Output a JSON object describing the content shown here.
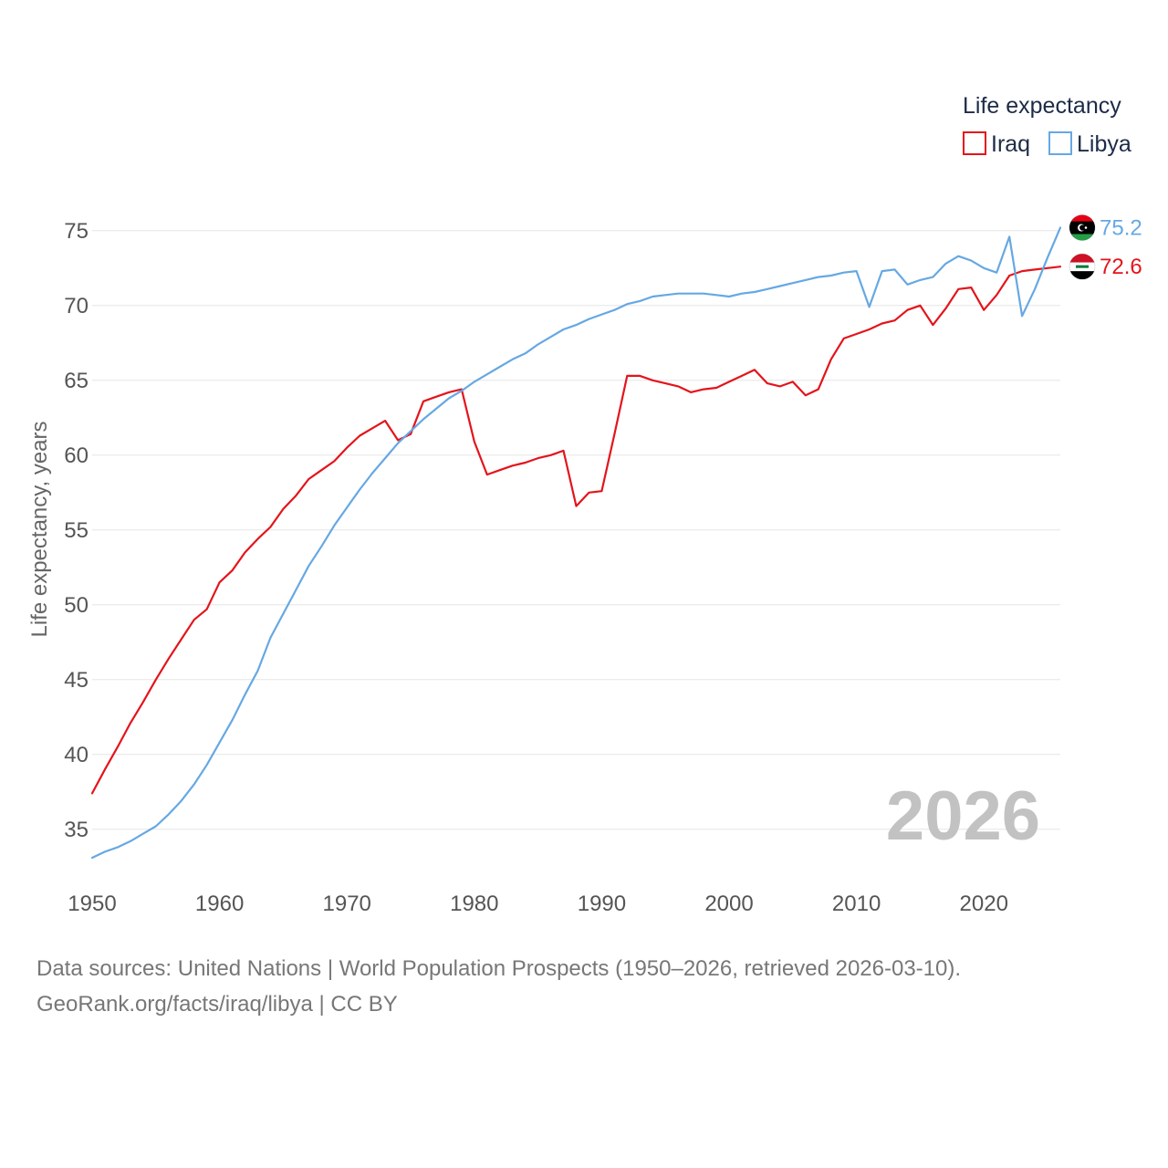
{
  "chart_data": {
    "type": "line",
    "title": "",
    "xlabel": "",
    "ylabel": "Life expectancy, years",
    "xlim": [
      1950,
      2026
    ],
    "ylim": [
      32,
      77
    ],
    "x_ticks": [
      1950,
      1960,
      1970,
      1980,
      1990,
      2000,
      2010,
      2020
    ],
    "y_ticks": [
      35,
      40,
      45,
      50,
      55,
      60,
      65,
      70,
      75
    ],
    "grid": true,
    "legend": {
      "title": "Life expectancy",
      "position": "top-right",
      "entries": [
        {
          "name": "Iraq",
          "color": "#e4141b"
        },
        {
          "name": "Libya",
          "color": "#66a8e3"
        }
      ]
    },
    "year_label": "2026",
    "x": [
      1950,
      1951,
      1952,
      1953,
      1954,
      1955,
      1956,
      1957,
      1958,
      1959,
      1960,
      1961,
      1962,
      1963,
      1964,
      1965,
      1966,
      1967,
      1968,
      1969,
      1970,
      1971,
      1972,
      1973,
      1974,
      1975,
      1976,
      1977,
      1978,
      1979,
      1980,
      1981,
      1982,
      1983,
      1984,
      1985,
      1986,
      1987,
      1988,
      1989,
      1990,
      1991,
      1992,
      1993,
      1994,
      1995,
      1996,
      1997,
      1998,
      1999,
      2000,
      2001,
      2002,
      2003,
      2004,
      2005,
      2006,
      2007,
      2008,
      2009,
      2010,
      2011,
      2012,
      2013,
      2014,
      2015,
      2016,
      2017,
      2018,
      2019,
      2020,
      2021,
      2022,
      2023,
      2024,
      2025,
      2026
    ],
    "series": [
      {
        "name": "Iraq",
        "color": "#e4141b",
        "end_label": "72.6",
        "flag_icon": "iraq-flag-icon",
        "values": [
          37.4,
          39.0,
          40.5,
          42.1,
          43.5,
          45.0,
          46.4,
          47.7,
          49.0,
          49.7,
          51.5,
          52.3,
          53.5,
          54.4,
          55.2,
          56.4,
          57.3,
          58.4,
          59.0,
          59.6,
          60.5,
          61.3,
          61.8,
          62.3,
          61.0,
          61.4,
          63.6,
          63.9,
          64.2,
          64.4,
          60.9,
          58.7,
          59.0,
          59.3,
          59.5,
          59.8,
          60.0,
          60.3,
          56.6,
          57.5,
          57.6,
          61.4,
          65.3,
          65.3,
          65.0,
          64.8,
          64.6,
          64.2,
          64.4,
          64.5,
          64.9,
          65.3,
          65.7,
          64.8,
          64.6,
          64.9,
          64.0,
          64.4,
          66.4,
          67.8,
          68.1,
          68.4,
          68.8,
          69.0,
          69.7,
          70.0,
          68.7,
          69.8,
          71.1,
          71.2,
          69.7,
          70.7,
          72.0,
          72.3,
          72.4,
          72.5,
          72.6
        ]
      },
      {
        "name": "Libya",
        "color": "#66a8e3",
        "end_label": "75.2",
        "flag_icon": "libya-flag-icon",
        "values": [
          33.1,
          33.5,
          33.8,
          34.2,
          34.7,
          35.2,
          36.0,
          36.9,
          38.0,
          39.3,
          40.8,
          42.3,
          44.0,
          45.6,
          47.8,
          49.4,
          51.0,
          52.6,
          53.9,
          55.3,
          56.5,
          57.7,
          58.8,
          59.8,
          60.8,
          61.6,
          62.4,
          63.1,
          63.8,
          64.3,
          64.9,
          65.4,
          65.9,
          66.4,
          66.8,
          67.4,
          67.9,
          68.4,
          68.7,
          69.1,
          69.4,
          69.7,
          70.1,
          70.3,
          70.6,
          70.7,
          70.8,
          70.8,
          70.8,
          70.7,
          70.6,
          70.8,
          70.9,
          71.1,
          71.3,
          71.5,
          71.7,
          71.9,
          72.0,
          72.2,
          72.3,
          69.9,
          72.3,
          72.4,
          71.4,
          71.7,
          71.9,
          72.8,
          73.3,
          73.0,
          72.5,
          72.2,
          74.6,
          69.3,
          71.1,
          73.2,
          75.2
        ]
      }
    ]
  },
  "source": {
    "line1": "Data sources: United Nations | World Population Prospects (1950–2026, retrieved 2026-03-10).",
    "line2": "GeoRank.org/facts/iraq/libya | CC BY"
  }
}
